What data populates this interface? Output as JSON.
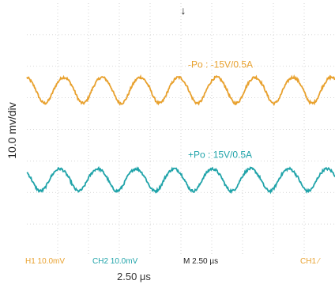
{
  "chart_data": {
    "type": "line",
    "xlabel": "2.50 μs",
    "ylabel": "10.0 mv/div",
    "grid": true,
    "time_per_div_us": 2.5,
    "volts_per_div_mV": 10.0,
    "x_range_us": [
      0,
      25
    ],
    "y_range_mV": [
      -40,
      40
    ],
    "series": [
      {
        "name": "-Po : -15V/0.5A",
        "color": "#e8a12e",
        "offset_div": 1.3,
        "amplitude_div": 0.35,
        "period_us": 3.1,
        "noise_div": 0.04
      },
      {
        "name": "+Po : 15V/0.5A",
        "color": "#1fa3a9",
        "offset_div": -1.55,
        "amplitude_div": 0.3,
        "period_us": 3.1,
        "noise_div": 0.04
      }
    ],
    "status_bar": {
      "ch1": "H1  10.0mV",
      "ch2": "CH2  10.0mV",
      "timebase": "M 2.50 µs",
      "trigger": "CH1 ⁄"
    },
    "trigger_marker": "↓"
  }
}
